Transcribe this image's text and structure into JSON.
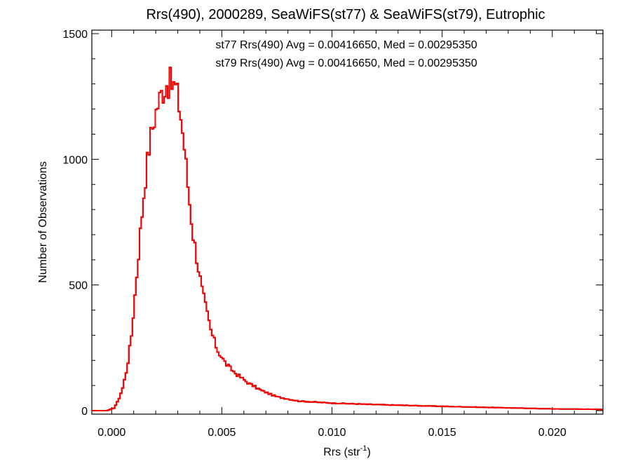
{
  "chart_data": {
    "type": "histogram",
    "title": "Rrs(490), 2000289, SeaWiFS(st77) & SeaWiFS(st79), Eutrophic",
    "xlabel": "Rrs (str",
    "xlabel_superscript": "-1",
    "xlabel_suffix": ")",
    "ylabel": "Number of Observations",
    "xlim": [
      -0.0009,
      0.0223
    ],
    "ylim": [
      0,
      1500
    ],
    "xticks": [
      0.0,
      0.005,
      0.01,
      0.015,
      0.02
    ],
    "xtick_labels": [
      "0.000",
      "0.005",
      "0.010",
      "0.015",
      "0.020"
    ],
    "yticks": [
      0,
      500,
      1000,
      1500
    ],
    "ytick_labels": [
      "0",
      "500",
      "1000",
      "1500"
    ],
    "annotations": [
      {
        "text": "st77 Rrs(490) Avg = 0.00416650, Med = 0.00295350",
        "color": "#000000"
      },
      {
        "text": "st79 Rrs(490) Avg = 0.00416650, Med = 0.00295350",
        "color": "#ff0000"
      }
    ],
    "series": [
      {
        "name": "st77",
        "color": "#000000",
        "note": "identical to st79, drawn underneath"
      },
      {
        "name": "st79",
        "color": "#ff0000"
      }
    ],
    "anchors": [
      [
        -0.0009,
        0
      ],
      [
        -0.0002,
        0
      ],
      [
        0.0001,
        10
      ],
      [
        0.0003,
        40
      ],
      [
        0.0005,
        90
      ],
      [
        0.0007,
        170
      ],
      [
        0.0009,
        300
      ],
      [
        0.0011,
        500
      ],
      [
        0.0013,
        710
      ],
      [
        0.0015,
        900
      ],
      [
        0.0017,
        1050
      ],
      [
        0.0019,
        1150
      ],
      [
        0.0021,
        1220
      ],
      [
        0.0023,
        1270
      ],
      [
        0.0025,
        1305
      ],
      [
        0.0027,
        1300
      ],
      [
        0.0029,
        1285
      ],
      [
        0.0031,
        1200
      ],
      [
        0.0033,
        1050
      ],
      [
        0.0035,
        860
      ],
      [
        0.0037,
        700
      ],
      [
        0.0039,
        590
      ],
      [
        0.0041,
        480
      ],
      [
        0.0043,
        400
      ],
      [
        0.0045,
        320
      ],
      [
        0.0048,
        240
      ],
      [
        0.0052,
        185
      ],
      [
        0.0056,
        150
      ],
      [
        0.0062,
        110
      ],
      [
        0.0068,
        80
      ],
      [
        0.0075,
        55
      ],
      [
        0.0085,
        38
      ],
      [
        0.01,
        30
      ],
      [
        0.012,
        24
      ],
      [
        0.015,
        17
      ],
      [
        0.018,
        11
      ],
      [
        0.02,
        7
      ],
      [
        0.0223,
        5
      ]
    ],
    "bin_width": 8e-05,
    "noise": 0.05
  }
}
